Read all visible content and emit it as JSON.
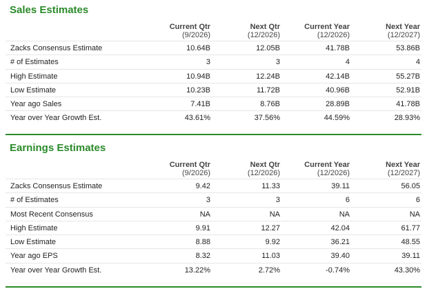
{
  "sales": {
    "title": "Sales Estimates",
    "columns": [
      {
        "name": "Current Qtr",
        "period": "(9/2026)"
      },
      {
        "name": "Next Qtr",
        "period": "(12/2026)"
      },
      {
        "name": "Current Year",
        "period": "(12/2026)"
      },
      {
        "name": "Next Year",
        "period": "(12/2027)"
      }
    ],
    "rows": [
      {
        "label": "Zacks Consensus Estimate",
        "values": [
          "10.64B",
          "12.05B",
          "41.78B",
          "53.86B"
        ]
      },
      {
        "label": "# of Estimates",
        "values": [
          "3",
          "3",
          "4",
          "4"
        ]
      },
      {
        "label": "High Estimate",
        "values": [
          "10.94B",
          "12.24B",
          "42.14B",
          "55.27B"
        ]
      },
      {
        "label": "Low Estimate",
        "values": [
          "10.23B",
          "11.72B",
          "40.96B",
          "52.91B"
        ]
      },
      {
        "label": "Year ago Sales",
        "values": [
          "7.41B",
          "8.76B",
          "28.89B",
          "41.78B"
        ]
      },
      {
        "label": "Year over Year Growth Est.",
        "values": [
          "43.61%",
          "37.56%",
          "44.59%",
          "28.93%"
        ]
      }
    ]
  },
  "earnings": {
    "title": "Earnings Estimates",
    "columns": [
      {
        "name": "Current Qtr",
        "period": "(9/2026)"
      },
      {
        "name": "Next Qtr",
        "period": "(12/2026)"
      },
      {
        "name": "Current Year",
        "period": "(12/2026)"
      },
      {
        "name": "Next Year",
        "period": "(12/2027)"
      }
    ],
    "rows": [
      {
        "label": "Zacks Consensus Estimate",
        "values": [
          "9.42",
          "11.33",
          "39.11",
          "56.05"
        ]
      },
      {
        "label": "# of Estimates",
        "values": [
          "3",
          "3",
          "6",
          "6"
        ]
      },
      {
        "label": "Most Recent Consensus",
        "values": [
          "NA",
          "NA",
          "NA",
          "NA"
        ]
      },
      {
        "label": "High Estimate",
        "values": [
          "9.91",
          "12.27",
          "42.04",
          "61.77"
        ]
      },
      {
        "label": "Low Estimate",
        "values": [
          "8.88",
          "9.92",
          "36.21",
          "48.55"
        ]
      },
      {
        "label": "Year ago EPS",
        "values": [
          "8.32",
          "11.03",
          "39.40",
          "39.11"
        ]
      },
      {
        "label": "Year over Year Growth Est.",
        "values": [
          "13.22%",
          "2.72%",
          "-0.74%",
          "43.30%"
        ]
      }
    ]
  },
  "colors": {
    "accent": "#2a8a2a",
    "row_rule": "#e6e6e6"
  }
}
